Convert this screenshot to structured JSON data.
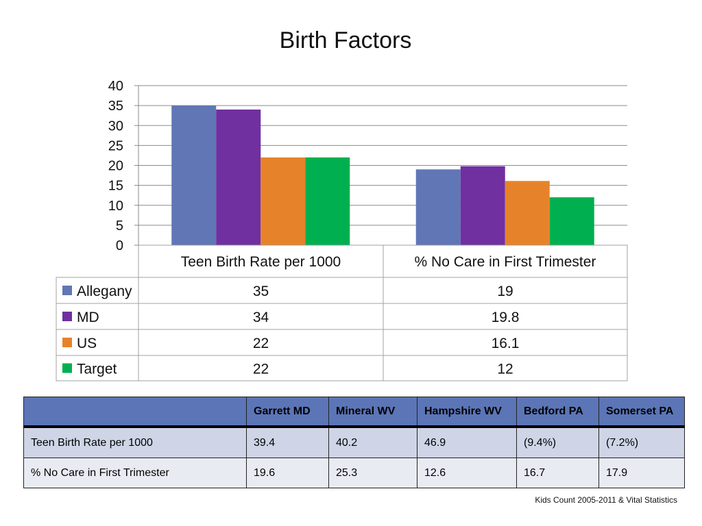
{
  "slide": {
    "title": "Birth Factors",
    "source": "Kids Count 2005-2011 & Vital Statistics"
  },
  "chart_data": {
    "type": "bar",
    "categories": [
      "Teen Birth Rate per 1000",
      "% No Care in First Trimester"
    ],
    "series": [
      {
        "name": "Allegany",
        "values": [
          35,
          19
        ],
        "color": "#6076b5",
        "value_labels": [
          "35",
          "19"
        ]
      },
      {
        "name": "MD",
        "values": [
          34,
          19.8
        ],
        "color": "#7030a0",
        "value_labels": [
          "34",
          "19.8"
        ]
      },
      {
        "name": "US",
        "values": [
          22,
          16.1
        ],
        "color": "#e6832a",
        "value_labels": [
          "22",
          "16.1"
        ]
      },
      {
        "name": "Target",
        "values": [
          22,
          12
        ],
        "color": "#00b050",
        "value_labels": [
          "22",
          "12"
        ]
      }
    ],
    "ylim": [
      0,
      40
    ],
    "yticks": [
      0,
      5,
      10,
      15,
      20,
      25,
      30,
      35,
      40
    ],
    "grid": true,
    "legend": "data table below chart"
  },
  "region_table": {
    "headers": [
      "",
      "Garrett MD",
      "Mineral WV",
      "Hampshire WV",
      "Bedford PA",
      "Somerset PA"
    ],
    "rows": [
      [
        "Teen Birth Rate per 1000",
        "39.4",
        "40.2",
        "46.9",
        "(9.4%)",
        "(7.2%)"
      ],
      [
        "% No Care in First Trimester",
        "19.6",
        "25.3",
        "12.6",
        "16.7",
        "17.9"
      ]
    ]
  }
}
